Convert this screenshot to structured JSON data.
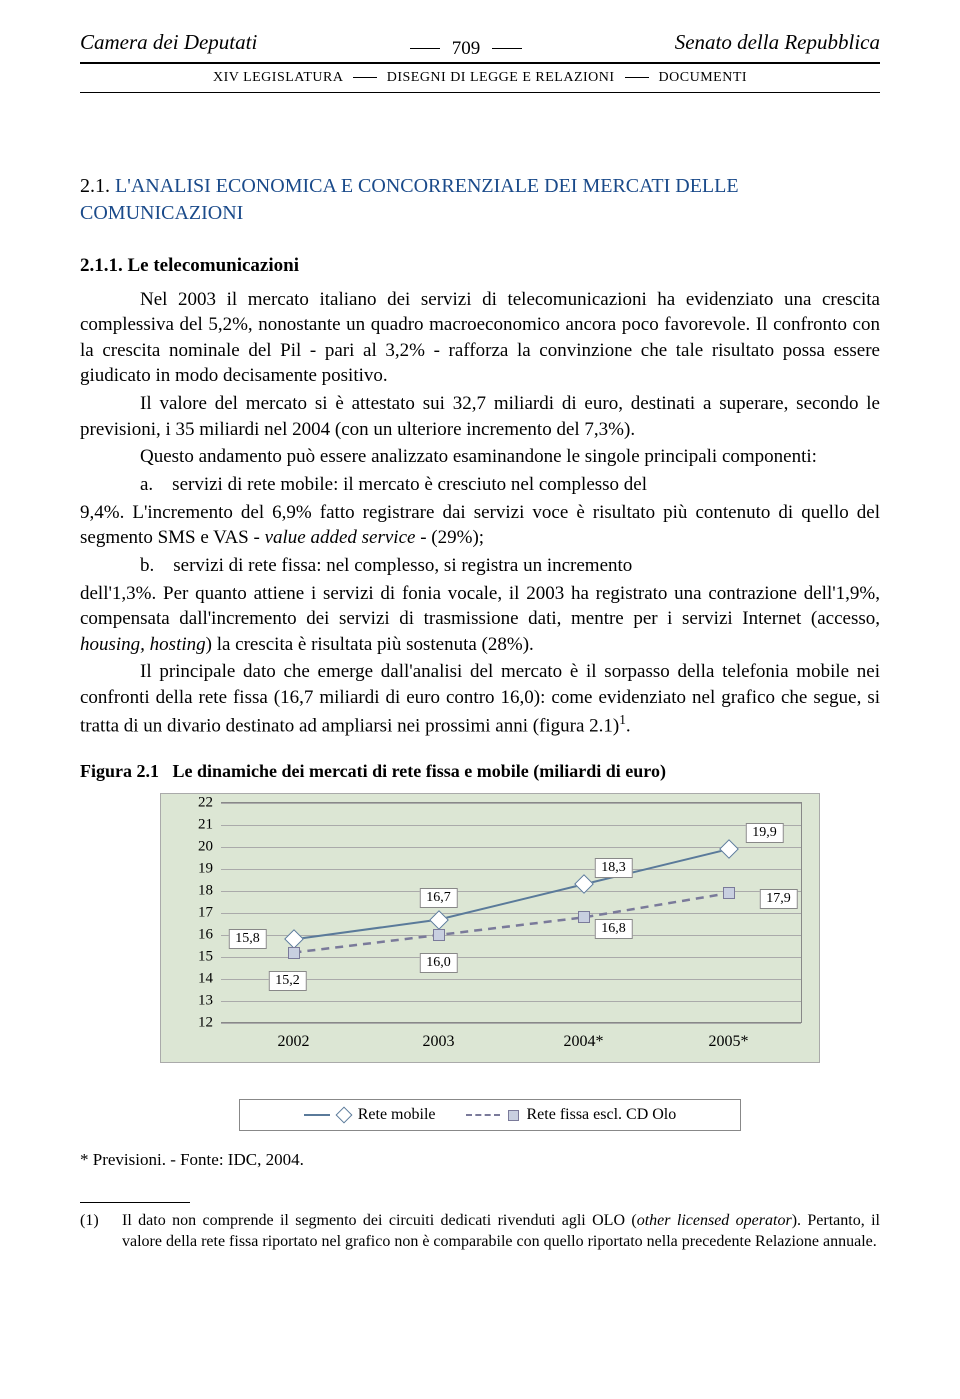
{
  "header": {
    "left": "Camera dei Deputati",
    "page_num": "709",
    "right": "Senato della Repubblica",
    "sub_left": "XIV LEGISLATURA",
    "sub_mid": "DISEGNI DI LEGGE E RELAZIONI",
    "sub_right": "DOCUMENTI"
  },
  "section": {
    "num": "2.1.",
    "title": "L'ANALISI ECONOMICA E CONCORRENZIALE DEI MERCATI DELLE COMUNICAZIONI",
    "sub_num": "2.1.1.",
    "sub_title": "Le telecomunicazioni"
  },
  "paragraphs": {
    "p1": "Nel 2003 il mercato italiano dei servizi di telecomunicazioni ha evidenziato una crescita complessiva del 5,2%, nonostante un quadro macroeconomico ancora poco favorevole. Il confronto con la crescita nominale del Pil - pari al 3,2% - rafforza la convinzione che tale risultato possa essere giudicato in modo decisamente positivo.",
    "p2": "Il valore del mercato si è attestato sui 32,7 miliardi di euro, destinati a superare, secondo le previsioni, i 35 miliardi nel 2004 (con un ulteriore incremento del 7,3%).",
    "p3": "Questo andamento può essere analizzato esaminandone le singole principali componenti:",
    "p4a": "a. servizi di rete mobile: il mercato è cresciuto nel complesso del",
    "p4b": "9,4%. L'incremento del 6,9% fatto registrare dai servizi voce è risultato più contenuto di quello del segmento SMS e VAS - ",
    "p4c": "value added service",
    "p4d": " - (29%);",
    "p5a": "b. servizi di rete fissa: nel complesso, si registra un incremento",
    "p5b": "dell'1,3%. Per quanto attiene i servizi di fonia vocale, il 2003 ha registrato una contrazione dell'1,9%, compensata dall'incremento dei servizi di trasmissione dati, mentre per i servizi Internet (accesso, ",
    "p5c": "housing, hosting",
    "p5d": ") la crescita è risultata più sostenuta (28%).",
    "p6a": "Il principale dato che emerge dall'analisi del mercato è il sorpasso della telefonia mobile nei confronti della rete fissa (16,7 miliardi di euro contro 16,0): come evidenziato nel grafico che segue, si tratta di un divario destinato ad ampliarsi nei prossimi anni (figura 2.1)",
    "p6sup": "1",
    "p6b": "."
  },
  "figure": {
    "label": "Figura 2.1",
    "caption": "Le dinamiche dei mercati di rete fissa e mobile (miliardi di euro)",
    "ylim": [
      12,
      22
    ],
    "yticks": [
      12,
      13,
      14,
      15,
      16,
      17,
      18,
      19,
      20,
      21,
      22
    ],
    "xticks": [
      "2002",
      "2003",
      "2004*",
      "2005*"
    ],
    "series": {
      "mobile": {
        "name": "Rete mobile",
        "values": [
          15.8,
          16.7,
          18.3,
          19.9
        ],
        "labels": [
          "15,8",
          "16,7",
          "18,3",
          "19,9"
        ]
      },
      "fissa": {
        "name": "Rete fissa escl. CD Olo",
        "values": [
          15.2,
          16.0,
          16.8,
          17.9
        ],
        "labels": [
          "15,2",
          "16,0",
          "16,8",
          "17,9"
        ]
      }
    },
    "legend": {
      "mobile": "Rete mobile",
      "fissa": "Rete fissa escl. CD Olo"
    },
    "colors": {
      "bg": "#dce6d4",
      "mobile": "#5a7a9a",
      "fissa": "#7a7a9a"
    }
  },
  "source": "* Previsioni. - Fonte: IDC, 2004.",
  "footnote": {
    "num": "(1)",
    "text_a": "Il dato non comprende il segmento dei circuiti dedicati rivenduti agli OLO (",
    "text_i": "other licensed operator",
    "text_b": "). Pertanto, il valore della rete fissa riportato nel grafico non è comparabile con quello riportato nella precedente Relazione annuale."
  }
}
